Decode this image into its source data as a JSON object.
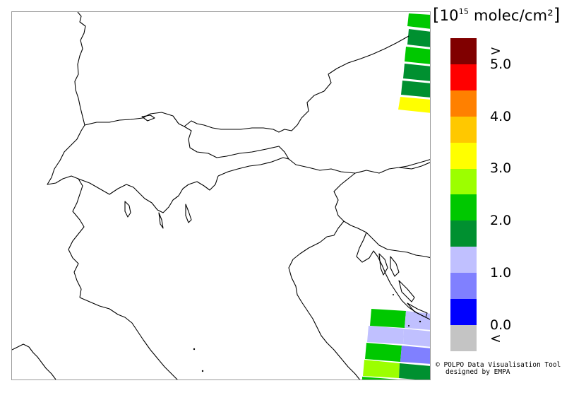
{
  "map": {
    "type": "column density pixel map",
    "region": "Alps / Northern Italy"
  },
  "legend": {
    "unit_prefix": "10",
    "unit_exponent": "15",
    "unit_text": "molec/cm²",
    "colors": [
      "#c4c4c4",
      "#0000ff",
      "#8080ff",
      "#c0c0ff",
      "#009030",
      "#00c800",
      "#9cff00",
      "#ffff00",
      "#ffc800",
      "#ff8000",
      "#ff0000",
      "#800000"
    ],
    "labels": [
      {
        "text": "<",
        "slot": 0
      },
      {
        "text": "0.0",
        "slot": 1
      },
      {
        "text": "1.0",
        "slot": 3
      },
      {
        "text": "2.0",
        "slot": 5
      },
      {
        "text": "3.0",
        "slot": 7
      },
      {
        "text": "4.0",
        "slot": 9
      },
      {
        "text": "5.0",
        "slot": 11
      },
      {
        "text": ">",
        "slot": 12
      }
    ]
  },
  "credits": {
    "line1": "© POLPO Data Visualisation Tool",
    "line2": "designed by EMPA"
  }
}
